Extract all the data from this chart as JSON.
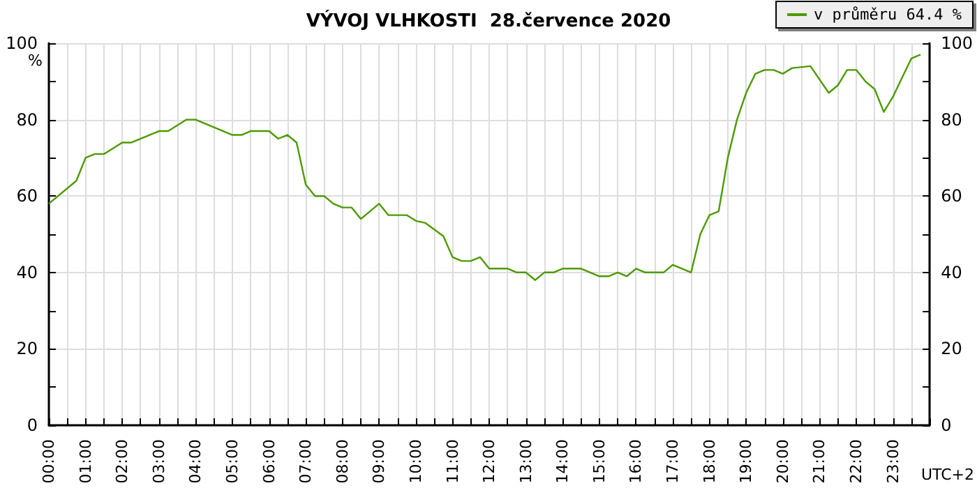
{
  "chart_data": {
    "type": "line",
    "title": "VÝVOJ VLHKOSTI  28.července 2020",
    "ylabel": "%",
    "annotations": [
      "UTC+2"
    ],
    "legend": "top right",
    "grid": true,
    "marker": "none",
    "line_style": "solid",
    "series": [
      {
        "name": "v průměru 64.4 %",
        "color": "#4c9a00",
        "x": [
          0,
          0.75,
          1,
          1.25,
          1.5,
          2,
          2.25,
          3,
          3.25,
          3.75,
          4,
          4.5,
          4.75,
          5,
          5.25,
          5.5,
          6,
          6.25,
          6.5,
          6.75,
          7,
          7.25,
          7.5,
          7.75,
          8,
          8.25,
          8.5,
          9,
          9.25,
          9.75,
          10,
          10.25,
          10.75,
          11,
          11.25,
          11.5,
          11.75,
          12,
          12.5,
          12.75,
          13,
          13.25,
          13.5,
          13.75,
          14,
          14.5,
          15,
          15.25,
          15.5,
          15.75,
          16,
          16.25,
          16.75,
          17,
          17.25,
          17.5,
          17.75,
          18,
          18.25,
          18.5,
          18.75,
          19,
          19.25,
          19.5,
          19.75,
          20,
          20.25,
          20.75,
          21.25,
          21.5,
          21.75,
          22,
          22.25,
          22.5,
          22.75,
          23,
          23.25,
          23.5,
          23.75
        ],
        "values": [
          58,
          64,
          70,
          71,
          71,
          74,
          74,
          77,
          77,
          80,
          80,
          78,
          77,
          76,
          76,
          77,
          77,
          75,
          76,
          74,
          63,
          60,
          60,
          58,
          57,
          57,
          54,
          58,
          55,
          55,
          53.5,
          53,
          49.5,
          44,
          43,
          43,
          44,
          41,
          41,
          40,
          40,
          38,
          40,
          40,
          41,
          41,
          39,
          39,
          40,
          39,
          41,
          40,
          40,
          42,
          41,
          40,
          50,
          55,
          56,
          70,
          80,
          87,
          92,
          93,
          93,
          92,
          93.5,
          94,
          87,
          89,
          93,
          93,
          90,
          88,
          82,
          86,
          91,
          96,
          97
        ]
      }
    ],
    "xlim": [
      0,
      24
    ],
    "xticks": [
      {
        "value": 0,
        "label": "00:00"
      },
      {
        "value": 0.5,
        "label": null
      },
      {
        "value": 1,
        "label": "01:00"
      },
      {
        "value": 1.5,
        "label": null
      },
      {
        "value": 2,
        "label": "02:00"
      },
      {
        "value": 2.5,
        "label": null
      },
      {
        "value": 3,
        "label": "03:00"
      },
      {
        "value": 3.5,
        "label": null
      },
      {
        "value": 4,
        "label": "04:00"
      },
      {
        "value": 4.5,
        "label": null
      },
      {
        "value": 5,
        "label": "05:00"
      },
      {
        "value": 5.5,
        "label": null
      },
      {
        "value": 6,
        "label": "06:00"
      },
      {
        "value": 6.5,
        "label": null
      },
      {
        "value": 7,
        "label": "07:00"
      },
      {
        "value": 7.5,
        "label": null
      },
      {
        "value": 8,
        "label": "08:00"
      },
      {
        "value": 8.5,
        "label": null
      },
      {
        "value": 9,
        "label": "09:00"
      },
      {
        "value": 9.5,
        "label": null
      },
      {
        "value": 10,
        "label": "10:00"
      },
      {
        "value": 10.5,
        "label": null
      },
      {
        "value": 11,
        "label": "11:00"
      },
      {
        "value": 11.5,
        "label": null
      },
      {
        "value": 12,
        "label": "12:00"
      },
      {
        "value": 12.5,
        "label": null
      },
      {
        "value": 13,
        "label": "13:00"
      },
      {
        "value": 13.5,
        "label": null
      },
      {
        "value": 14,
        "label": "14:00"
      },
      {
        "value": 14.5,
        "label": null
      },
      {
        "value": 15,
        "label": "15:00"
      },
      {
        "value": 15.5,
        "label": null
      },
      {
        "value": 16,
        "label": "16:00"
      },
      {
        "value": 16.5,
        "label": null
      },
      {
        "value": 17,
        "label": "17:00"
      },
      {
        "value": 17.5,
        "label": null
      },
      {
        "value": 18,
        "label": "18:00"
      },
      {
        "value": 18.5,
        "label": null
      },
      {
        "value": 19,
        "label": "19:00"
      },
      {
        "value": 19.5,
        "label": null
      },
      {
        "value": 20,
        "label": "20:00"
      },
      {
        "value": 20.5,
        "label": null
      },
      {
        "value": 21,
        "label": "21:00"
      },
      {
        "value": 21.5,
        "label": null
      },
      {
        "value": 22,
        "label": "22:00"
      },
      {
        "value": 22.5,
        "label": null
      },
      {
        "value": 23,
        "label": "23:00"
      },
      {
        "value": 23.5,
        "label": null
      },
      {
        "value": 24,
        "label": null
      }
    ],
    "ylim": [
      0,
      100
    ],
    "yticks": [
      0,
      {
        "value": 10,
        "label": null
      },
      20,
      {
        "value": 30,
        "label": null
      },
      40,
      {
        "value": 50,
        "label": null
      },
      60,
      {
        "value": 70,
        "label": null
      },
      80,
      {
        "value": 90,
        "label": null
      },
      100
    ],
    "y2lim": [
      0,
      100
    ],
    "y2ticks": [
      0,
      {
        "value": 10,
        "label": null
      },
      20,
      {
        "value": 30,
        "label": null
      },
      40,
      {
        "value": 50,
        "label": null
      },
      60,
      {
        "value": 70,
        "label": null
      },
      80,
      {
        "value": 90,
        "label": null
      },
      100
    ]
  }
}
